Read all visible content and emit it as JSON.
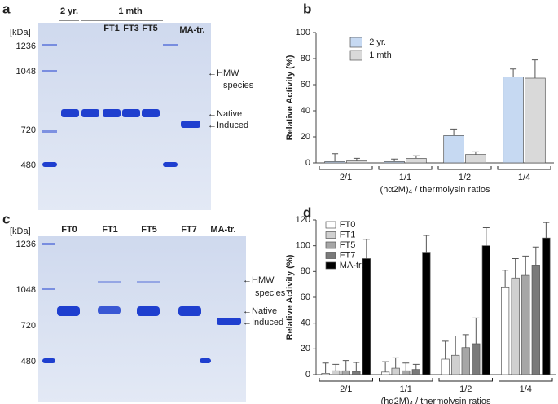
{
  "gels": [
    {
      "panel": "a",
      "unit": "[kDa]",
      "markers": [
        "1236",
        "1048",
        "720",
        "480"
      ],
      "group_labels": [
        "2 yr.",
        "1 mth"
      ],
      "lanes": [
        "FT1",
        "FT3",
        "FT5",
        "MA-tr."
      ],
      "annotations": [
        "←HMW",
        "species",
        "←Native",
        "←Induced"
      ]
    },
    {
      "panel": "c",
      "unit": "[kDa]",
      "markers": [
        "1236",
        "1048",
        "720",
        "480"
      ],
      "lanes": [
        "FT0",
        "FT1",
        "FT5",
        "FT7",
        "MA-tr."
      ],
      "annotations": [
        "←HMW",
        "species",
        "←Native",
        "←Induced"
      ]
    }
  ],
  "chart_data": [
    {
      "type": "bar",
      "panel": "b",
      "ylabel": "Relative Activity (%)",
      "xlabel": [
        "(hα2M)",
        "4",
        " / thermolysin ratios"
      ],
      "categories": [
        "2/1",
        "1/1",
        "1/2",
        "1/4"
      ],
      "series": [
        {
          "name": "2 yr.",
          "color": "#c6d9f2",
          "values": [
            1,
            1,
            21,
            66
          ],
          "errors": [
            6,
            2,
            5,
            6
          ]
        },
        {
          "name": "1 mth",
          "color": "#d9d9d9",
          "values": [
            1.5,
            3.5,
            6.5,
            65
          ],
          "errors": [
            2,
            2,
            2,
            14
          ]
        }
      ],
      "ylim": [
        0,
        100
      ],
      "yticks": [
        0,
        20,
        40,
        60,
        80,
        100
      ],
      "legend": "top-left"
    },
    {
      "type": "bar",
      "panel": "d",
      "ylabel": "Relative Activity (%)",
      "xlabel": [
        "(hα2M)",
        "4",
        " / thermolysin ratios"
      ],
      "categories": [
        "2/1",
        "1/1",
        "1/2",
        "1/4"
      ],
      "series": [
        {
          "name": "FT0",
          "color": "#ffffff",
          "values": [
            1,
            2,
            12,
            68
          ],
          "errors": [
            8,
            8,
            14,
            13
          ]
        },
        {
          "name": "FT1",
          "color": "#d0d0d0",
          "values": [
            3,
            5,
            15,
            75
          ],
          "errors": [
            5,
            8,
            15,
            15
          ]
        },
        {
          "name": "FT5",
          "color": "#a6a6a6",
          "values": [
            3,
            3,
            21,
            77
          ],
          "errors": [
            8,
            6,
            10,
            15
          ]
        },
        {
          "name": "FT7",
          "color": "#7a7a7a",
          "values": [
            2.5,
            4,
            24,
            85
          ],
          "errors": [
            7,
            4,
            20,
            14
          ]
        },
        {
          "name": "MA-tr.",
          "color": "#000000",
          "values": [
            90,
            95,
            100,
            106
          ],
          "errors": [
            15,
            13,
            14,
            12
          ]
        }
      ],
      "ylim": [
        0,
        120
      ],
      "yticks": [
        0,
        20,
        40,
        60,
        80,
        100,
        120
      ],
      "legend": "top-left"
    }
  ]
}
